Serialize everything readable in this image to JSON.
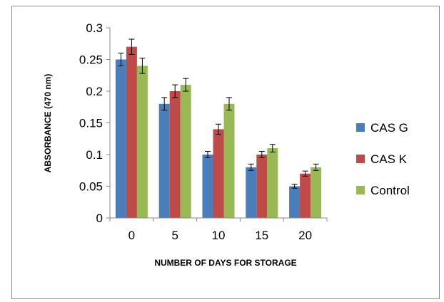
{
  "chart_data": {
    "type": "bar",
    "title": "",
    "xlabel": "NUMBER OF DAYS FOR STORAGE",
    "ylabel": "ABSORBANCE (470 nm)",
    "categories": [
      "0",
      "5",
      "10",
      "15",
      "20"
    ],
    "ylim": [
      0,
      0.3
    ],
    "yticks": [
      "0",
      "0.05",
      "0.1",
      "0.15",
      "0.2",
      "0.25",
      "0.3"
    ],
    "grid": false,
    "legend_position": "right",
    "series": [
      {
        "name": "CAS G",
        "color": "#4a7ebb",
        "values": [
          0.25,
          0.18,
          0.1,
          0.08,
          0.05
        ],
        "errors": [
          0.01,
          0.01,
          0.005,
          0.005,
          0.003
        ]
      },
      {
        "name": "CAS K",
        "color": "#be4b48",
        "values": [
          0.27,
          0.2,
          0.14,
          0.1,
          0.07
        ],
        "errors": [
          0.012,
          0.01,
          0.008,
          0.005,
          0.004
        ]
      },
      {
        "name": "Control",
        "color": "#98b954",
        "values": [
          0.24,
          0.21,
          0.18,
          0.11,
          0.08
        ],
        "errors": [
          0.012,
          0.01,
          0.01,
          0.006,
          0.005
        ]
      }
    ]
  }
}
